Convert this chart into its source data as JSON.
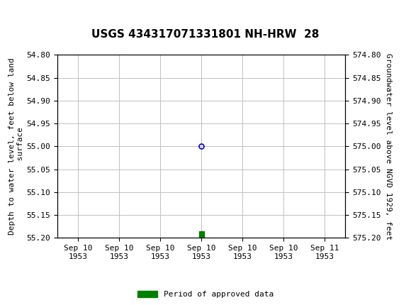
{
  "title": "USGS 434317071331801 NH-HRW  28",
  "left_ylabel": "Depth to water level, feet below land\n surface",
  "right_ylabel": "Groundwater level above NGVD 1929, feet",
  "ylim_left": [
    54.8,
    55.2
  ],
  "ylim_right": [
    574.8,
    575.2
  ],
  "left_yticks": [
    54.8,
    54.85,
    54.9,
    54.95,
    55.0,
    55.05,
    55.1,
    55.15,
    55.2
  ],
  "right_yticks": [
    574.8,
    574.85,
    574.9,
    574.95,
    575.0,
    575.05,
    575.1,
    575.15,
    575.2
  ],
  "data_point_x": 3.0,
  "data_point_y": 55.0,
  "bar_x": 3.0,
  "bar_y": 55.185,
  "bar_height": 0.015,
  "open_circle_color": "#0000cc",
  "bar_color": "#008000",
  "background_color": "#ffffff",
  "header_color": "#006633",
  "grid_color": "#c0c0c0",
  "font_color": "#000000",
  "title_fontsize": 11,
  "axis_label_fontsize": 8,
  "tick_fontsize": 8,
  "legend_label": "Period of approved data",
  "legend_color": "#008000",
  "xtick_labels": [
    "Sep 10\n1953",
    "Sep 10\n1953",
    "Sep 10\n1953",
    "Sep 10\n1953",
    "Sep 10\n1953",
    "Sep 10\n1953",
    "Sep 11\n1953"
  ],
  "xtick_positions": [
    0,
    1,
    2,
    3,
    4,
    5,
    6
  ],
  "xlim": [
    -0.5,
    6.5
  ]
}
